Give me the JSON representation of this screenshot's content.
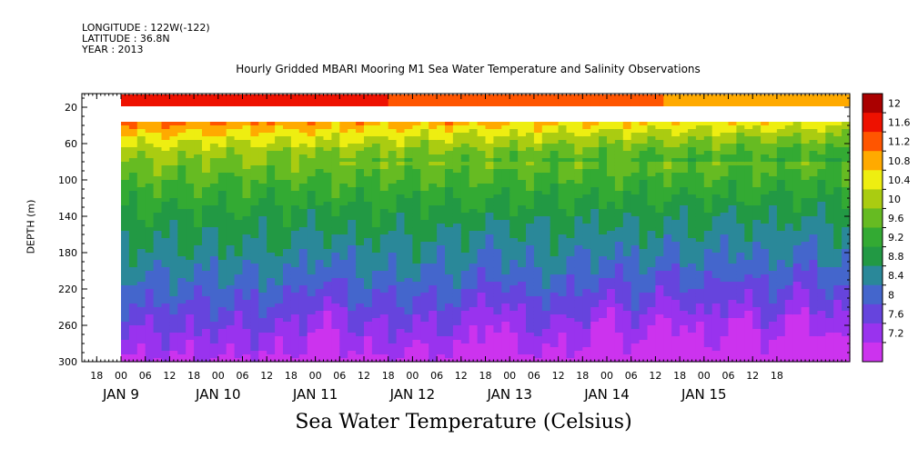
{
  "header": {
    "lines": [
      "LONGITUDE : 122W(-122)",
      "LATITUDE : 36.8N",
      "YEAR : 2013"
    ]
  },
  "chart_data": {
    "type": "heatmap",
    "title": "Hourly Gridded MBARI Mooring M1 Sea Water Temperature and Salinity Observations",
    "xlabel": "Sea Water Temperature (Celsius)",
    "ylabel": "DEPTH (m)",
    "y_ticks": [
      20,
      60,
      100,
      140,
      180,
      220,
      260,
      300
    ],
    "y_range": [
      300,
      5
    ],
    "y_reversed": true,
    "x_hour_ticks": [
      "18",
      "00",
      "06",
      "12",
      "18",
      "00",
      "06",
      "12",
      "18",
      "00",
      "06",
      "12",
      "18",
      "00",
      "06",
      "12",
      "18",
      "00",
      "06",
      "12",
      "18",
      "00",
      "06",
      "12",
      "18",
      "00",
      "06",
      "12",
      "18"
    ],
    "x_day_labels": [
      "JAN  9",
      "JAN 10",
      "JAN 11",
      "JAN 12",
      "JAN 13",
      "JAN 14",
      "JAN 15"
    ],
    "colorbar_levels": [
      7.2,
      7.6,
      8,
      8.4,
      8.8,
      9.2,
      9.6,
      10,
      10.4,
      10.8,
      11.2,
      11.6,
      12
    ],
    "colorbar_labels": [
      "12",
      "11.6",
      "11.2",
      "10.8",
      "10.4",
      "10",
      "9.6",
      "9.2",
      "8.8",
      "8.4",
      "8",
      "7.6",
      "7.2"
    ],
    "colors": {
      "7.2": "#cc33ee",
      "7.6": "#9933ee",
      "8.0": "#6644dd",
      "8.4": "#4466cc",
      "8.8": "#2a8899",
      "9.2": "#229944",
      "9.6": "#33aa33",
      "10.0": "#66bb22",
      "10.4": "#aacc11",
      "10.8": "#eeee11",
      "11.2": "#ffaa00",
      "11.6": "#ff5500",
      "12.0": "#ee1100",
      "12.4": "#aa0000"
    },
    "surface_temperature": 12.2,
    "data_gap_depth_range": [
      19,
      36
    ],
    "depth_profile": [
      {
        "depth": 36,
        "temp": 11.5
      },
      {
        "depth": 50,
        "temp": 11.0
      },
      {
        "depth": 70,
        "temp": 10.4
      },
      {
        "depth": 90,
        "temp": 10.0
      },
      {
        "depth": 110,
        "temp": 9.7
      },
      {
        "depth": 140,
        "temp": 9.3
      },
      {
        "depth": 170,
        "temp": 9.0
      },
      {
        "depth": 200,
        "temp": 8.7
      },
      {
        "depth": 230,
        "temp": 8.3
      },
      {
        "depth": 260,
        "temp": 7.9
      },
      {
        "depth": 290,
        "temp": 7.5
      },
      {
        "depth": 300,
        "temp": 7.3
      }
    ],
    "deep_cold_events_hours": [
      50,
      92,
      120,
      136,
      152,
      168
    ],
    "time_start_hour": 0,
    "time_end_hour": 180
  }
}
